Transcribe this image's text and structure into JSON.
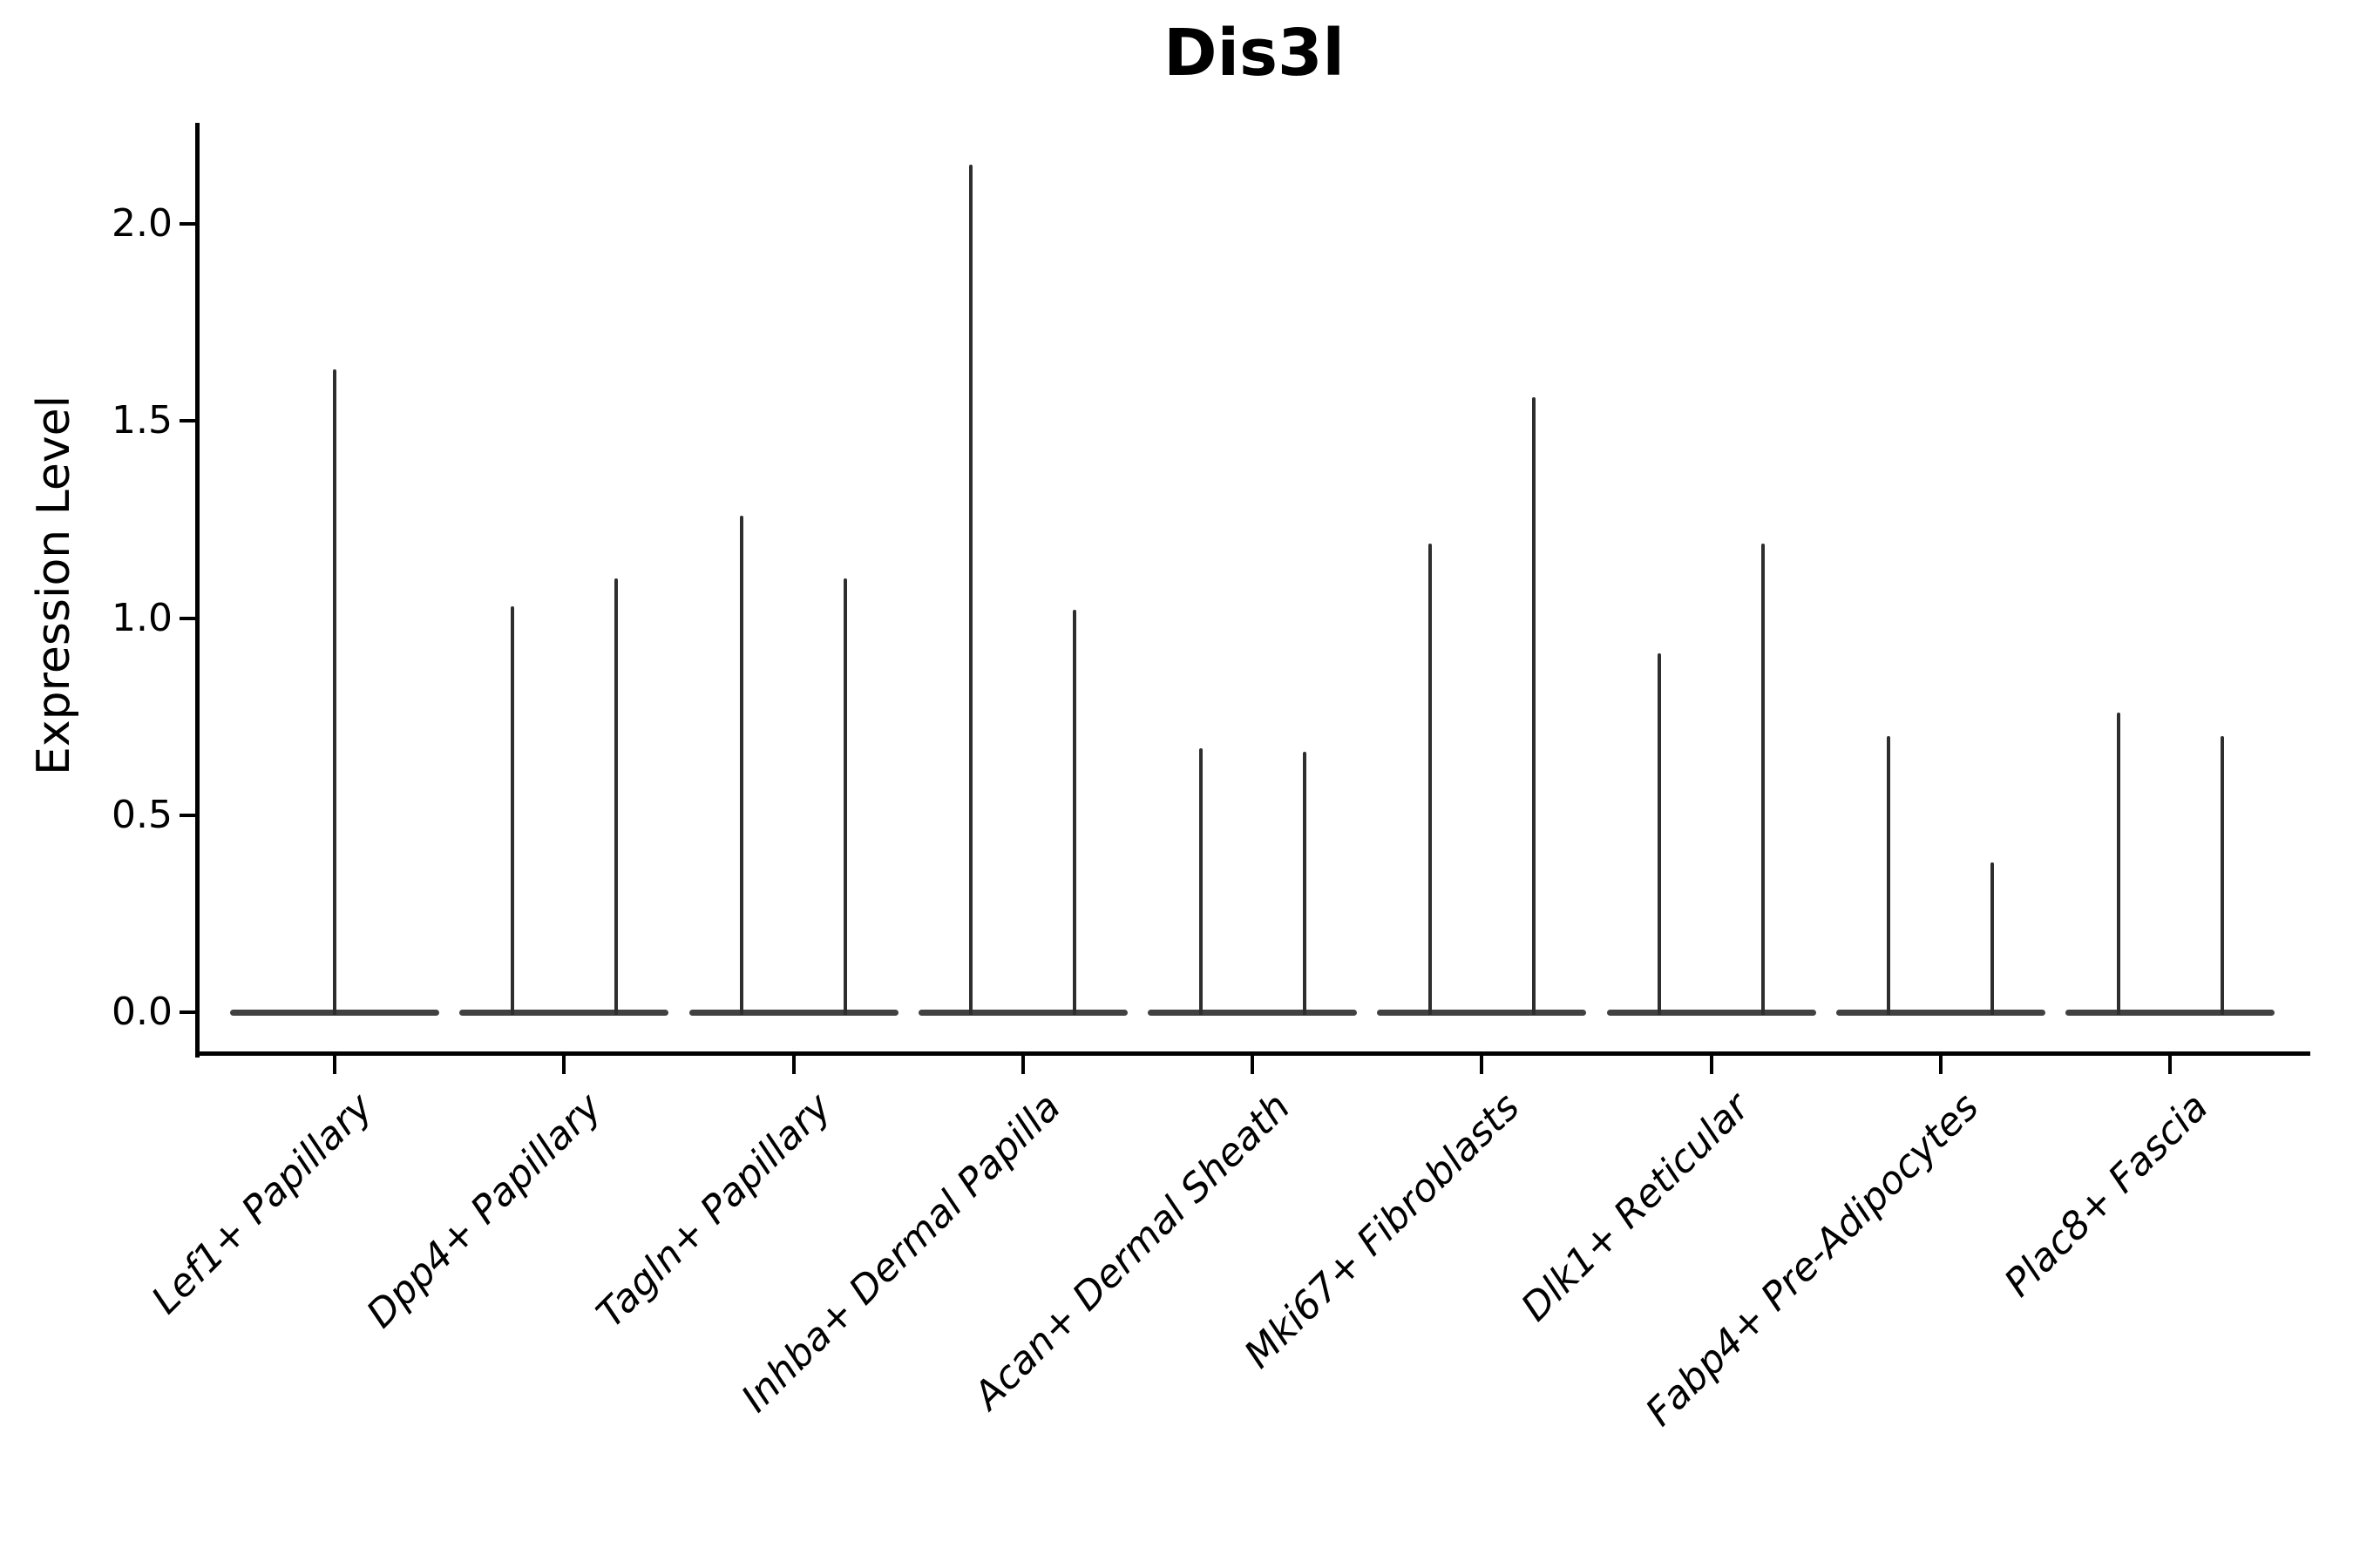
{
  "figure_title": "Dis3l",
  "colors": {
    "background": "#ffffff",
    "axis": "#000000",
    "text": "#000000",
    "violin_spike": "#2e2e2e",
    "violin_baseline": "#414141"
  },
  "chart_data": {
    "type": "violin",
    "title": "Dis3l",
    "xlabel": "",
    "ylabel": "Expression Level",
    "yticks": [
      "0.0",
      "0.5",
      "1.0",
      "1.5",
      "2.0"
    ],
    "ylim": [
      -0.1,
      2.25
    ],
    "grid": false,
    "legend": "none",
    "orientation": "vertical",
    "style_note": "extremely thin violins: flat body at 0 with narrow spike up to max expression; groups 2-9 contain two violins each, group 1 a single centered violin",
    "baseline_value": 0.0,
    "categories": [
      "Lef1+ Papillary",
      "Dpp4+ Papillary",
      "Tagln+ Papillary",
      "Inhba+ Dermal Papilla",
      "Acan+ Dermal Sheath",
      "Mki67+ Fibroblasts",
      "Dlk1+ Reticular",
      "Fabp4+ Pre-Adipocytes",
      "Plac8+ Fascia"
    ],
    "groups": [
      {
        "label": "Lef1+ Papillary",
        "violin_max": [
          1.63
        ]
      },
      {
        "label": "Dpp4+ Papillary",
        "violin_max": [
          1.03,
          1.1
        ]
      },
      {
        "label": "Tagln+ Papillary",
        "violin_max": [
          1.26,
          1.1
        ]
      },
      {
        "label": "Inhba+ Dermal Papilla",
        "violin_max": [
          2.15,
          1.02
        ]
      },
      {
        "label": "Acan+ Dermal Sheath",
        "violin_max": [
          0.67,
          0.66
        ]
      },
      {
        "label": "Mki67+ Fibroblasts",
        "violin_max": [
          1.19,
          1.56
        ]
      },
      {
        "label": "Dlk1+ Reticular",
        "violin_max": [
          0.91,
          1.19
        ]
      },
      {
        "label": "Fabp4+ Pre-Adipocytes",
        "violin_max": [
          0.7,
          0.38
        ]
      },
      {
        "label": "Plac8+ Fascia",
        "violin_max": [
          0.76,
          0.7
        ]
      }
    ]
  }
}
